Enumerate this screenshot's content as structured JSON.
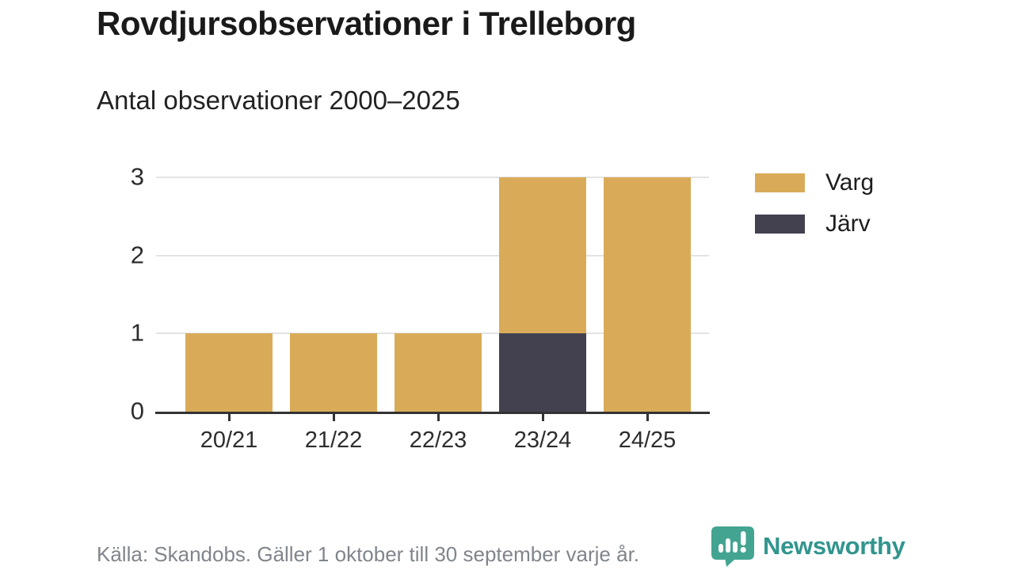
{
  "header": {
    "title": "Rovdjursobservationer i Trelleborg",
    "subtitle": "Antal observationer 2000–2025"
  },
  "chart_data": {
    "type": "bar",
    "stacked": true,
    "title": "Rovdjursobservationer i Trelleborg",
    "subtitle": "Antal observationer 2000–2025",
    "categories": [
      "20/21",
      "21/22",
      "22/23",
      "23/24",
      "24/25"
    ],
    "series": [
      {
        "name": "Varg",
        "color": "#d9ab58",
        "values": [
          1,
          1,
          1,
          2,
          3
        ]
      },
      {
        "name": "Järv",
        "color": "#434050",
        "values": [
          0,
          0,
          0,
          1,
          0
        ]
      }
    ],
    "stack_order_bottom_to_top": [
      "Järv",
      "Varg"
    ],
    "totals": [
      1,
      1,
      1,
      3,
      3
    ],
    "xlabel": "",
    "ylabel": "",
    "ylim": [
      0,
      3
    ],
    "yticks": [
      0,
      1,
      2,
      3
    ],
    "grid": true,
    "legend_position": "right"
  },
  "footer": {
    "source": "Källa: Skandobs. Gäller 1 oktober till 30 september varje år.",
    "brand": "Newsworthy"
  },
  "colors": {
    "varg": "#d9ab58",
    "jarv": "#434050",
    "grid": "#e3e3e3",
    "axis": "#333333",
    "text_dark": "#1d1d1d",
    "text_gray": "#80858c",
    "brand_teal": "#31958d",
    "brand_icon_teal": "#43a491"
  }
}
